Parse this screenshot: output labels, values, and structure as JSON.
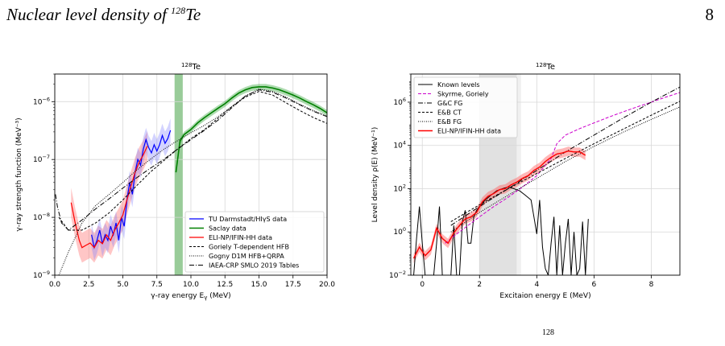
{
  "header": {
    "title_pre": "Nuclear level density of ",
    "title_sup": "128",
    "title_sym": "Te",
    "page": "8"
  },
  "caption_fragment": "128",
  "chart_data": [
    {
      "type": "line",
      "title_sup": "128",
      "title_sym": "Te",
      "xlabel": "γ-ray energy E_γ (MeV)",
      "ylabel": "γ-ray strength function (MeV⁻³)",
      "xlim": [
        0,
        20
      ],
      "ylim": [
        1e-09,
        3e-06
      ],
      "yscale": "log",
      "grid": true,
      "legend_position": "lower right",
      "xticks": [
        "0.0",
        "2.5",
        "5.0",
        "7.5",
        "10.0",
        "12.5",
        "15.0",
        "17.5",
        "20.0"
      ],
      "yticks": [
        "10⁻⁹",
        "10⁻⁸",
        "10⁻⁷",
        "10⁻⁶"
      ],
      "legend": [
        "TU Darmstadt/HIγS data",
        "Saclay data",
        "ELI-NP/IFIN-HH data",
        "Goriely T-dependent HFB",
        "Gogny D1M HFB+QRPA",
        "IAEA-CRP SMLO 2019 Tables"
      ],
      "series": [
        {
          "name": "TU Darmstadt/HIγS data",
          "color": "#0000ff",
          "x": [
            2.7,
            2.9,
            3.1,
            3.3,
            3.5,
            3.7,
            3.9,
            4.1,
            4.3,
            4.5,
            4.7,
            4.9,
            5.1,
            5.3,
            5.5,
            5.7,
            5.9,
            6.1,
            6.3,
            6.5,
            6.7,
            6.9,
            7.1,
            7.3,
            7.5,
            7.7,
            7.9,
            8.1,
            8.3,
            8.5
          ],
          "y": [
            5e-09,
            3e-09,
            4e-09,
            6e-09,
            3.5e-09,
            5e-09,
            4e-09,
            7e-09,
            5e-09,
            8e-09,
            4e-09,
            1e-08,
            7e-09,
            2e-08,
            4e-08,
            2.5e-08,
            6e-08,
            1e-07,
            8e-08,
            1.5e-07,
            2.2e-07,
            1.6e-07,
            1.3e-07,
            1.8e-07,
            1.4e-07,
            1.8e-07,
            2.6e-07,
            1.9e-07,
            2.3e-07,
            3.2e-07
          ]
        },
        {
          "name": "Saclay data",
          "color": "#008000",
          "x": [
            8.9,
            9.2,
            9.5,
            10.0,
            10.5,
            11.0,
            11.5,
            12.0,
            12.5,
            13.0,
            13.5,
            14.0,
            14.5,
            15.0,
            15.5,
            16.0,
            16.5,
            17.0,
            17.5,
            18.0,
            18.5,
            19.0,
            19.5,
            20.0
          ],
          "y": [
            6e-08,
            2.1e-07,
            2.7e-07,
            3.3e-07,
            4.3e-07,
            5.3e-07,
            6.4e-07,
            7.7e-07,
            9.2e-07,
            1.15e-06,
            1.4e-06,
            1.6e-06,
            1.75e-06,
            1.8e-06,
            1.8e-06,
            1.72e-06,
            1.6e-06,
            1.45e-06,
            1.3e-06,
            1.15e-06,
            1e-06,
            8.8e-07,
            7.6e-07,
            6.4e-07
          ]
        },
        {
          "name": "ELI-NP/IFIN-HH data",
          "color": "#ff0000",
          "x": [
            1.2,
            1.5,
            1.8,
            2.0,
            2.3,
            2.6,
            2.9,
            3.2,
            3.5,
            3.8,
            4.1,
            4.4,
            4.7,
            5.0,
            5.3,
            5.6,
            5.9,
            6.2,
            6.5,
            6.8
          ],
          "y": [
            1.8e-08,
            8e-09,
            4e-09,
            3e-09,
            3.3e-09,
            3.6e-09,
            3e-09,
            4e-09,
            3.5e-09,
            5e-09,
            4e-09,
            6e-09,
            8e-09,
            1.1e-08,
            2e-08,
            3.5e-08,
            6e-08,
            9e-08,
            1.2e-07,
            1.7e-07
          ]
        },
        {
          "name": "Goriely T-dependent HFB",
          "color": "#000000",
          "x": [
            0.3,
            1,
            2,
            3,
            4,
            5,
            6,
            7,
            8,
            9,
            10,
            11,
            12,
            13,
            14,
            15,
            16,
            17,
            18,
            19,
            20
          ],
          "y": [
            1e-08,
            6e-09,
            6e-09,
            8e-09,
            1.2e-08,
            2e-08,
            3.5e-08,
            6e-08,
            9.5e-08,
            1.5e-07,
            2.3e-07,
            3.3e-07,
            5.2e-07,
            8.2e-07,
            1.2e-06,
            1.5e-06,
            1.3e-06,
            9.5e-07,
            7e-07,
            5.3e-07,
            4.2e-07
          ]
        },
        {
          "name": "Gogny D1M HFB+QRPA",
          "color": "#000000",
          "x": [
            0.3,
            1,
            2,
            3,
            4,
            5,
            6,
            7,
            8,
            9,
            10,
            11,
            12,
            13,
            14,
            15,
            16,
            17,
            18,
            19,
            20
          ],
          "y": [
            1e-09,
            2.5e-09,
            8e-09,
            1.6e-08,
            2.5e-08,
            4e-08,
            6.5e-08,
            1e-07,
            1.5e-07,
            2.1e-07,
            2.9e-07,
            3.9e-07,
            5.5e-07,
            8.2e-07,
            1.25e-06,
            1.65e-06,
            1.5e-06,
            1.2e-06,
            9e-07,
            7e-07,
            5.6e-07
          ]
        },
        {
          "name": "IAEA-CRP SMLO 2019 Tables",
          "color": "#000000",
          "x": [
            0.05,
            0.2,
            0.5,
            1,
            2,
            3,
            4,
            5,
            6,
            7,
            8,
            9,
            10,
            11,
            12,
            13,
            14,
            15,
            16,
            17,
            18,
            19,
            20
          ],
          "y": [
            2.5e-08,
            1.5e-08,
            8e-09,
            6e-09,
            9e-09,
            1.4e-08,
            2.1e-08,
            3.2e-08,
            4.8e-08,
            7e-08,
            1e-07,
            1.5e-07,
            2.2e-07,
            3.2e-07,
            4.8e-07,
            7.8e-07,
            1.25e-06,
            1.6e-06,
            1.45e-06,
            1.15e-06,
            8.8e-07,
            6.8e-07,
            5.5e-07
          ]
        }
      ]
    },
    {
      "type": "line",
      "title_sup": "128",
      "title_sym": "Te",
      "xlabel": "Excitaion energy E (MeV)",
      "ylabel": "Level density ρ(E) (MeV⁻¹)",
      "xlim": [
        -0.4,
        9.0
      ],
      "ylim": [
        0.01,
        20000000.0
      ],
      "yscale": "log",
      "grid": true,
      "legend_position": "upper left",
      "xticks": [
        "0",
        "2",
        "4",
        "6",
        "8"
      ],
      "yticks": [
        "10⁻²",
        "10⁰",
        "10²",
        "10⁴",
        "10⁶"
      ],
      "shaded_band_x": [
        2.0,
        3.3
      ],
      "legend": [
        "Known levels",
        "Skyrme, Goriely",
        "G&C FG",
        "E&B CT",
        "E&B FG",
        "ELI-NP/IFIN-HH data"
      ],
      "series": [
        {
          "name": "Known levels",
          "color": "#000000",
          "x": [
            -0.3,
            -0.2,
            -0.1,
            0.0,
            0.1,
            0.2,
            0.3,
            0.4,
            0.5,
            0.6,
            0.7,
            0.8,
            0.9,
            1.0,
            1.1,
            1.2,
            1.3,
            1.4,
            1.5,
            1.6,
            1.7,
            1.8,
            1.9,
            2.0,
            2.2,
            2.4,
            2.6,
            2.8,
            3.0,
            3.2,
            3.4,
            3.6,
            3.8,
            3.9,
            4.0,
            4.1,
            4.2,
            4.3,
            4.4,
            4.5,
            4.6,
            4.7,
            4.8,
            4.9,
            5.0,
            5.1,
            5.2,
            5.3,
            5.4,
            5.5,
            5.6,
            5.7,
            5.8
          ],
          "y": [
            0.01,
            0.5,
            15,
            0.3,
            0.01,
            0.01,
            0.01,
            0.01,
            0.3,
            15,
            0.01,
            0.01,
            0.01,
            0.01,
            2,
            0.01,
            0.01,
            3,
            10,
            0.3,
            0.3,
            5,
            10,
            15,
            30,
            50,
            80,
            100,
            120,
            100,
            80,
            50,
            30,
            5,
            0.8,
            30,
            0.2,
            0.02,
            0.01,
            0.3,
            5,
            0.01,
            2,
            0.01,
            0.3,
            4,
            0.01,
            1,
            0.01,
            0.02,
            3,
            0.01,
            4
          ]
        },
        {
          "name": "Skyrme, Goriely",
          "color": "#cc00cc",
          "x": [
            0.8,
            1.2,
            1.6,
            2.0,
            2.5,
            3.0,
            3.5,
            4.0,
            4.5,
            4.7,
            5.0,
            5.5,
            6.0,
            6.5,
            7.0,
            7.5,
            8.0,
            8.5,
            9.0
          ],
          "y": [
            0.3,
            0.8,
            2,
            5,
            15,
            40,
            120,
            400,
            2500,
            12000,
            30000,
            60000,
            110000,
            200000,
            350000,
            600000,
            1000000,
            1700000,
            2800000
          ]
        },
        {
          "name": "G&C FG",
          "color": "#000000",
          "x": [
            1,
            2,
            3,
            4,
            5,
            6,
            7,
            8,
            9
          ],
          "y": [
            2,
            15,
            100,
            700,
            5000,
            30000,
            180000,
            1000000,
            5000000
          ]
        },
        {
          "name": "E&B CT",
          "color": "#000000",
          "x": [
            1,
            2,
            3,
            4,
            5,
            6,
            7,
            8,
            9
          ],
          "y": [
            3,
            18,
            100,
            500,
            2500,
            12000,
            55000,
            250000,
            1100000
          ]
        },
        {
          "name": "E&B FG",
          "color": "#000000",
          "x": [
            1,
            2,
            3,
            4,
            5,
            6,
            7,
            8,
            9
          ],
          "y": [
            1,
            8,
            50,
            300,
            1800,
            9000,
            40000,
            160000,
            600000
          ]
        },
        {
          "name": "ELI-NP/IFIN-HH data",
          "color": "#ff0000",
          "x": [
            -0.3,
            -0.1,
            0.1,
            0.3,
            0.5,
            0.7,
            0.9,
            1.1,
            1.3,
            1.5,
            1.7,
            1.9,
            2.1,
            2.3,
            2.5,
            2.7,
            2.9,
            3.1,
            3.3,
            3.5,
            3.7,
            3.9,
            4.1,
            4.3,
            4.5,
            4.7,
            4.9,
            5.1,
            5.3,
            5.5,
            5.7
          ],
          "y": [
            0.06,
            0.2,
            0.08,
            0.15,
            1.5,
            0.5,
            0.3,
            0.9,
            2,
            4,
            5,
            8,
            25,
            45,
            60,
            90,
            100,
            150,
            200,
            300,
            400,
            700,
            1000,
            1800,
            2800,
            4000,
            4500,
            5500,
            5000,
            5000,
            3500
          ]
        }
      ]
    }
  ]
}
